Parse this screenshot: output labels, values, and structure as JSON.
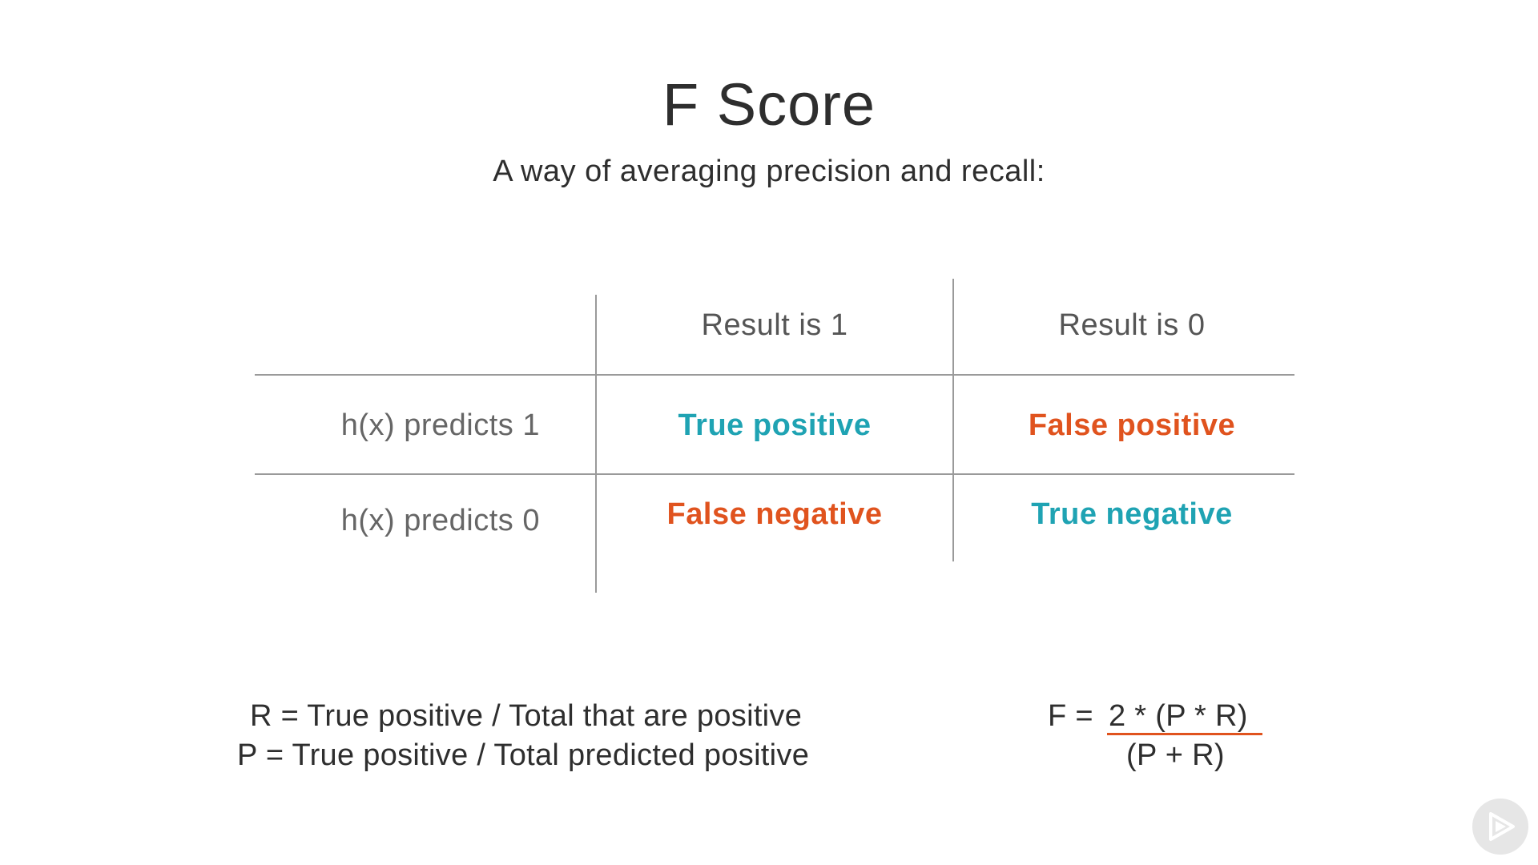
{
  "slide": {
    "title": "F Score",
    "subtitle": "A way of averaging precision and recall:"
  },
  "table": {
    "col_headers": [
      "Result is 1",
      "Result is 0"
    ],
    "rows": [
      {
        "label": "h(x) predicts 1",
        "cells": [
          "True positive",
          "False positive"
        ]
      },
      {
        "label": "h(x) predicts 0",
        "cells": [
          "False negative",
          "True negative"
        ]
      }
    ]
  },
  "formulas": {
    "recall": "R = True positive / Total that are positive",
    "precision": "P = True positive / Total predicted positive",
    "f_prefix": "F = ",
    "f_numerator": "2 * (P * R)",
    "f_denominator": "(P + R)"
  },
  "colors": {
    "true_color": "#1fa3b3",
    "false_color": "#e0531e",
    "fraction_bar": "#e0531e",
    "grid_line": "#9a9a9a"
  },
  "icons": {
    "logo": "play-logo-icon"
  }
}
